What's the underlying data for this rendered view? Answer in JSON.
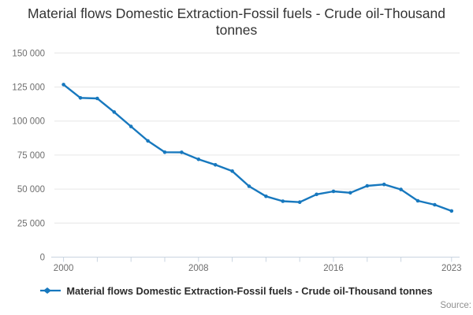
{
  "header": {
    "title": "Material flows Domestic Extraction-Fossil fuels - Crude oil-Thousand tonnes"
  },
  "legend": {
    "label": "Material flows Domestic Extraction-Fossil fuels - Crude oil-Thousand tonnes",
    "marker_icon": "line-with-diamond-marker-icon"
  },
  "footer": {
    "source_label": "Source:"
  },
  "colors": {
    "series_line": "#1778be",
    "gridline": "#e6e6e6",
    "axis_line": "#c9d4e0",
    "tick_label": "#6e6e6e",
    "title_text": "#333333",
    "legend_text": "#2b2b2b",
    "source_text": "#8f8f8f",
    "background": "#ffffff"
  },
  "chart_data": {
    "type": "line",
    "title": "Material flows Domestic Extraction-Fossil fuels - Crude oil-Thousand tonnes",
    "xlabel": "",
    "ylabel": "",
    "x": [
      2000,
      2001,
      2002,
      2003,
      2004,
      2005,
      2006,
      2007,
      2008,
      2009,
      2010,
      2011,
      2012,
      2013,
      2014,
      2015,
      2016,
      2017,
      2018,
      2019,
      2020,
      2021,
      2022,
      2023
    ],
    "series": [
      {
        "name": "Material flows Domestic Extraction-Fossil fuels - Crude oil-Thousand tonnes",
        "color": "#1778be",
        "values": [
          126800,
          117000,
          116600,
          106600,
          96000,
          85400,
          77100,
          77000,
          71900,
          67800,
          63200,
          52100,
          44700,
          41100,
          40400,
          46100,
          48300,
          47300,
          52400,
          53400,
          49700,
          41400,
          38500,
          33900
        ]
      }
    ],
    "ylim": [
      0,
      150000
    ],
    "yticks": [
      0,
      25000,
      50000,
      75000,
      100000,
      125000,
      150000
    ],
    "ytick_labels": [
      "0",
      "25 000",
      "50 000",
      "75 000",
      "100 000",
      "125 000",
      "150 000"
    ],
    "xticks": [
      2000,
      2002,
      2004,
      2006,
      2008,
      2010,
      2012,
      2014,
      2016,
      2018,
      2020,
      2023
    ],
    "xtick_label_years": [
      2000,
      2008,
      2016,
      2023
    ],
    "xtick_labels": [
      "2000",
      "2008",
      "2016",
      "2023"
    ],
    "grid": "horizontal-only",
    "legend_position": "bottom",
    "marker": "circle"
  }
}
